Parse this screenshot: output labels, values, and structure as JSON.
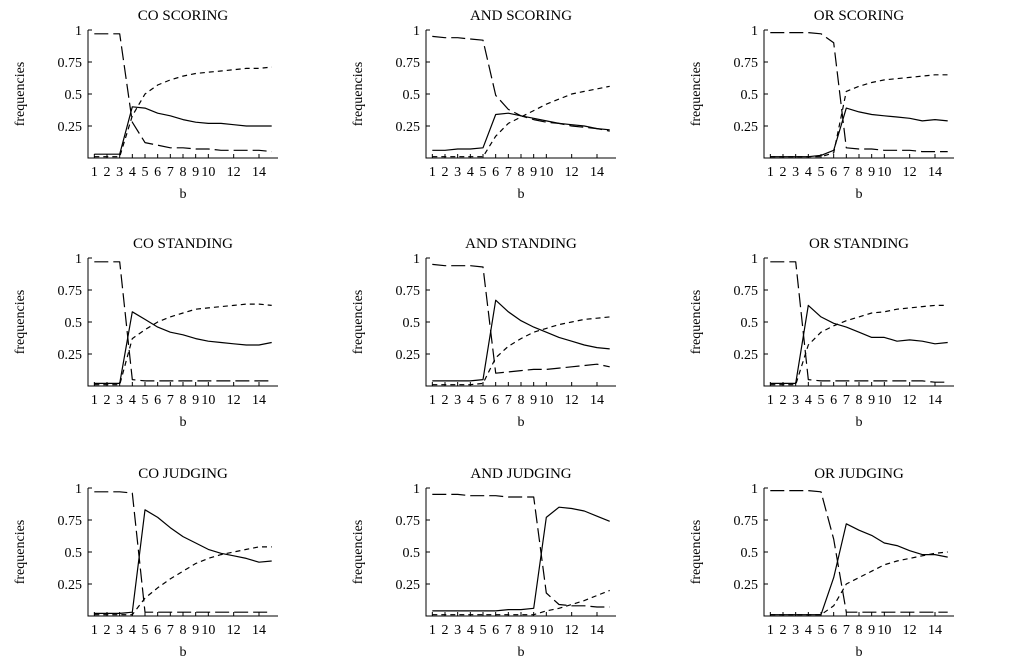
{
  "chart_data": [
    {
      "type": "line",
      "title": "CO SCORING",
      "xlabel": "b",
      "ylabel": "frequencies",
      "xlim": [
        0.5,
        15.5
      ],
      "ylim": [
        0,
        1
      ],
      "xticks": [
        1,
        2,
        3,
        4,
        5,
        6,
        7,
        8,
        9,
        10,
        12,
        14
      ],
      "xticklabels": [
        "1",
        "2",
        "3",
        "4",
        "5",
        "6",
        "7",
        "8",
        "9",
        "10",
        "12",
        "14"
      ],
      "yticks": [
        0.25,
        0.5,
        0.75,
        1
      ],
      "yticklabels": [
        "0.25",
        "0.5",
        "0.75",
        "1"
      ],
      "x": [
        1,
        2,
        3,
        4,
        5,
        6,
        7,
        8,
        9,
        10,
        11,
        12,
        13,
        14,
        15
      ],
      "series": [
        {
          "style": "solid",
          "values": [
            0.03,
            0.03,
            0.03,
            0.4,
            0.39,
            0.35,
            0.33,
            0.3,
            0.28,
            0.27,
            0.27,
            0.26,
            0.25,
            0.25,
            0.25
          ]
        },
        {
          "style": "long-dash",
          "values": [
            0.97,
            0.97,
            0.97,
            0.28,
            0.12,
            0.1,
            0.08,
            0.08,
            0.07,
            0.07,
            0.06,
            0.06,
            0.06,
            0.06,
            0.05
          ]
        },
        {
          "style": "short-dash",
          "values": [
            0.01,
            0.01,
            0.01,
            0.33,
            0.5,
            0.57,
            0.61,
            0.64,
            0.66,
            0.67,
            0.68,
            0.69,
            0.7,
            0.7,
            0.71
          ]
        }
      ]
    },
    {
      "type": "line",
      "title": "AND SCORING",
      "xlabel": "b",
      "ylabel": "frequencies",
      "xlim": [
        0.5,
        15.5
      ],
      "ylim": [
        0,
        1
      ],
      "xticks": [
        1,
        2,
        3,
        4,
        5,
        6,
        7,
        8,
        9,
        10,
        12,
        14
      ],
      "xticklabels": [
        "1",
        "2",
        "3",
        "4",
        "5",
        "6",
        "7",
        "8",
        "9",
        "10",
        "12",
        "14"
      ],
      "yticks": [
        0.25,
        0.5,
        0.75,
        1
      ],
      "yticklabels": [
        "0.25",
        "0.5",
        "0.75",
        "1"
      ],
      "x": [
        1,
        2,
        3,
        4,
        5,
        6,
        7,
        8,
        9,
        10,
        11,
        12,
        13,
        14,
        15
      ],
      "series": [
        {
          "style": "solid",
          "values": [
            0.06,
            0.06,
            0.07,
            0.07,
            0.08,
            0.34,
            0.35,
            0.33,
            0.31,
            0.29,
            0.27,
            0.26,
            0.25,
            0.23,
            0.22
          ]
        },
        {
          "style": "long-dash",
          "values": [
            0.95,
            0.94,
            0.94,
            0.93,
            0.92,
            0.49,
            0.38,
            0.33,
            0.3,
            0.28,
            0.27,
            0.25,
            0.24,
            0.23,
            0.21
          ]
        },
        {
          "style": "short-dash",
          "values": [
            0.01,
            0.01,
            0.01,
            0.01,
            0.01,
            0.17,
            0.27,
            0.32,
            0.37,
            0.42,
            0.46,
            0.5,
            0.52,
            0.54,
            0.56
          ]
        }
      ]
    },
    {
      "type": "line",
      "title": "OR SCORING",
      "xlabel": "b",
      "ylabel": "frequencies",
      "xlim": [
        0.5,
        15.5
      ],
      "ylim": [
        0,
        1
      ],
      "xticks": [
        1,
        2,
        3,
        4,
        5,
        6,
        7,
        8,
        9,
        10,
        12,
        14
      ],
      "xticklabels": [
        "1",
        "2",
        "3",
        "4",
        "5",
        "6",
        "7",
        "8",
        "9",
        "10",
        "12",
        "14"
      ],
      "yticks": [
        0.25,
        0.5,
        0.75,
        1
      ],
      "yticklabels": [
        "0.25",
        "0.5",
        "0.75",
        "1"
      ],
      "x": [
        1,
        2,
        3,
        4,
        5,
        6,
        7,
        8,
        9,
        10,
        11,
        12,
        13,
        14,
        15
      ],
      "series": [
        {
          "style": "solid",
          "values": [
            0.01,
            0.01,
            0.01,
            0.01,
            0.02,
            0.06,
            0.39,
            0.36,
            0.34,
            0.33,
            0.32,
            0.31,
            0.29,
            0.3,
            0.29
          ]
        },
        {
          "style": "long-dash",
          "values": [
            0.98,
            0.98,
            0.98,
            0.98,
            0.97,
            0.9,
            0.08,
            0.07,
            0.07,
            0.06,
            0.06,
            0.06,
            0.05,
            0.05,
            0.05
          ]
        },
        {
          "style": "short-dash",
          "values": [
            0.01,
            0.01,
            0.01,
            0.01,
            0.01,
            0.04,
            0.52,
            0.56,
            0.59,
            0.61,
            0.62,
            0.63,
            0.64,
            0.65,
            0.65
          ]
        }
      ]
    },
    {
      "type": "line",
      "title": "CO STANDING",
      "xlabel": "b",
      "ylabel": "frequencies",
      "xlim": [
        0.5,
        15.5
      ],
      "ylim": [
        0,
        1
      ],
      "xticks": [
        1,
        2,
        3,
        4,
        5,
        6,
        7,
        8,
        9,
        10,
        12,
        14
      ],
      "xticklabels": [
        "1",
        "2",
        "3",
        "4",
        "5",
        "6",
        "7",
        "8",
        "9",
        "10",
        "12",
        "14"
      ],
      "yticks": [
        0.25,
        0.5,
        0.75,
        1
      ],
      "yticklabels": [
        "0.25",
        "0.5",
        "0.75",
        "1"
      ],
      "x": [
        1,
        2,
        3,
        4,
        5,
        6,
        7,
        8,
        9,
        10,
        11,
        12,
        13,
        14,
        15
      ],
      "series": [
        {
          "style": "solid",
          "values": [
            0.02,
            0.02,
            0.02,
            0.58,
            0.52,
            0.46,
            0.42,
            0.4,
            0.37,
            0.35,
            0.34,
            0.33,
            0.32,
            0.32,
            0.34
          ]
        },
        {
          "style": "long-dash",
          "values": [
            0.97,
            0.97,
            0.97,
            0.05,
            0.04,
            0.04,
            0.04,
            0.04,
            0.04,
            0.04,
            0.04,
            0.04,
            0.04,
            0.04,
            0.04
          ]
        },
        {
          "style": "short-dash",
          "values": [
            0.01,
            0.01,
            0.01,
            0.37,
            0.44,
            0.5,
            0.54,
            0.57,
            0.6,
            0.61,
            0.62,
            0.63,
            0.64,
            0.64,
            0.63
          ]
        }
      ]
    },
    {
      "type": "line",
      "title": "AND STANDING",
      "xlabel": "b",
      "ylabel": "frequencies",
      "xlim": [
        0.5,
        15.5
      ],
      "ylim": [
        0,
        1
      ],
      "xticks": [
        1,
        2,
        3,
        4,
        5,
        6,
        7,
        8,
        9,
        10,
        12,
        14
      ],
      "xticklabels": [
        "1",
        "2",
        "3",
        "4",
        "5",
        "6",
        "7",
        "8",
        "9",
        "10",
        "12",
        "14"
      ],
      "yticks": [
        0.25,
        0.5,
        0.75,
        1
      ],
      "yticklabels": [
        "0.25",
        "0.5",
        "0.75",
        "1"
      ],
      "x": [
        1,
        2,
        3,
        4,
        5,
        6,
        7,
        8,
        9,
        10,
        11,
        12,
        13,
        14,
        15
      ],
      "series": [
        {
          "style": "solid",
          "values": [
            0.04,
            0.04,
            0.04,
            0.04,
            0.05,
            0.67,
            0.58,
            0.51,
            0.46,
            0.42,
            0.38,
            0.35,
            0.32,
            0.3,
            0.29
          ]
        },
        {
          "style": "long-dash",
          "values": [
            0.95,
            0.94,
            0.94,
            0.94,
            0.93,
            0.1,
            0.11,
            0.12,
            0.13,
            0.13,
            0.14,
            0.15,
            0.16,
            0.17,
            0.15
          ]
        },
        {
          "style": "short-dash",
          "values": [
            0.01,
            0.01,
            0.01,
            0.01,
            0.02,
            0.22,
            0.31,
            0.37,
            0.42,
            0.45,
            0.48,
            0.5,
            0.52,
            0.53,
            0.54
          ]
        }
      ]
    },
    {
      "type": "line",
      "title": "OR STANDING",
      "xlabel": "b",
      "ylabel": "frequencies",
      "xlim": [
        0.5,
        15.5
      ],
      "ylim": [
        0,
        1
      ],
      "xticks": [
        1,
        2,
        3,
        4,
        5,
        6,
        7,
        8,
        9,
        10,
        12,
        14
      ],
      "xticklabels": [
        "1",
        "2",
        "3",
        "4",
        "5",
        "6",
        "7",
        "8",
        "9",
        "10",
        "12",
        "14"
      ],
      "yticks": [
        0.25,
        0.5,
        0.75,
        1
      ],
      "yticklabels": [
        "0.25",
        "0.5",
        "0.75",
        "1"
      ],
      "x": [
        1,
        2,
        3,
        4,
        5,
        6,
        7,
        8,
        9,
        10,
        11,
        12,
        13,
        14,
        15
      ],
      "series": [
        {
          "style": "solid",
          "values": [
            0.02,
            0.02,
            0.02,
            0.63,
            0.54,
            0.49,
            0.46,
            0.42,
            0.38,
            0.38,
            0.35,
            0.36,
            0.35,
            0.33,
            0.34
          ]
        },
        {
          "style": "long-dash",
          "values": [
            0.97,
            0.97,
            0.97,
            0.05,
            0.04,
            0.04,
            0.04,
            0.04,
            0.04,
            0.04,
            0.04,
            0.04,
            0.04,
            0.03,
            0.03
          ]
        },
        {
          "style": "short-dash",
          "values": [
            0.01,
            0.01,
            0.01,
            0.32,
            0.42,
            0.47,
            0.51,
            0.54,
            0.57,
            0.58,
            0.6,
            0.61,
            0.62,
            0.63,
            0.63
          ]
        }
      ]
    },
    {
      "type": "line",
      "title": "CO JUDGING",
      "xlabel": "b",
      "ylabel": "frequencies",
      "xlim": [
        0.5,
        15.5
      ],
      "ylim": [
        0,
        1
      ],
      "xticks": [
        1,
        2,
        3,
        4,
        5,
        6,
        7,
        8,
        9,
        10,
        12,
        14
      ],
      "xticklabels": [
        "1",
        "2",
        "3",
        "4",
        "5",
        "6",
        "7",
        "8",
        "9",
        "10",
        "12",
        "14"
      ],
      "yticks": [
        0.25,
        0.5,
        0.75,
        1
      ],
      "yticklabels": [
        "0.25",
        "0.5",
        "0.75",
        "1"
      ],
      "x": [
        1,
        2,
        3,
        4,
        5,
        6,
        7,
        8,
        9,
        10,
        11,
        12,
        13,
        14,
        15
      ],
      "series": [
        {
          "style": "solid",
          "values": [
            0.02,
            0.02,
            0.02,
            0.03,
            0.83,
            0.77,
            0.69,
            0.62,
            0.57,
            0.52,
            0.49,
            0.47,
            0.45,
            0.42,
            0.43
          ]
        },
        {
          "style": "long-dash",
          "values": [
            0.97,
            0.97,
            0.97,
            0.96,
            0.03,
            0.03,
            0.03,
            0.03,
            0.03,
            0.03,
            0.03,
            0.03,
            0.03,
            0.03,
            0.03
          ]
        },
        {
          "style": "short-dash",
          "values": [
            0.01,
            0.01,
            0.01,
            0.01,
            0.14,
            0.22,
            0.29,
            0.35,
            0.41,
            0.45,
            0.48,
            0.5,
            0.52,
            0.54,
            0.54
          ]
        }
      ]
    },
    {
      "type": "line",
      "title": "AND JUDGING",
      "xlabel": "b",
      "ylabel": "frequencies",
      "xlim": [
        0.5,
        15.5
      ],
      "ylim": [
        0,
        1
      ],
      "xticks": [
        1,
        2,
        3,
        4,
        5,
        6,
        7,
        8,
        9,
        10,
        12,
        14
      ],
      "xticklabels": [
        "1",
        "2",
        "3",
        "4",
        "5",
        "6",
        "7",
        "8",
        "9",
        "10",
        "12",
        "14"
      ],
      "yticks": [
        0.25,
        0.5,
        0.75,
        1
      ],
      "yticklabels": [
        "0.25",
        "0.5",
        "0.75",
        "1"
      ],
      "x": [
        1,
        2,
        3,
        4,
        5,
        6,
        7,
        8,
        9,
        10,
        11,
        12,
        13,
        14,
        15
      ],
      "series": [
        {
          "style": "solid",
          "values": [
            0.04,
            0.04,
            0.04,
            0.04,
            0.04,
            0.04,
            0.05,
            0.05,
            0.06,
            0.77,
            0.85,
            0.84,
            0.82,
            0.78,
            0.74
          ]
        },
        {
          "style": "long-dash",
          "values": [
            0.95,
            0.95,
            0.95,
            0.94,
            0.94,
            0.94,
            0.93,
            0.93,
            0.93,
            0.18,
            0.09,
            0.08,
            0.08,
            0.07,
            0.07
          ]
        },
        {
          "style": "short-dash",
          "values": [
            0.01,
            0.01,
            0.01,
            0.01,
            0.01,
            0.01,
            0.01,
            0.01,
            0.01,
            0.04,
            0.06,
            0.09,
            0.12,
            0.16,
            0.2
          ]
        }
      ]
    },
    {
      "type": "line",
      "title": "OR JUDGING",
      "xlabel": "b",
      "ylabel": "frequencies",
      "xlim": [
        0.5,
        15.5
      ],
      "ylim": [
        0,
        1
      ],
      "xticks": [
        1,
        2,
        3,
        4,
        5,
        6,
        7,
        8,
        9,
        10,
        12,
        14
      ],
      "xticklabels": [
        "1",
        "2",
        "3",
        "4",
        "5",
        "6",
        "7",
        "8",
        "9",
        "10",
        "12",
        "14"
      ],
      "yticks": [
        0.25,
        0.5,
        0.75,
        1
      ],
      "yticklabels": [
        "0.25",
        "0.5",
        "0.75",
        "1"
      ],
      "x": [
        1,
        2,
        3,
        4,
        5,
        6,
        7,
        8,
        9,
        10,
        11,
        12,
        13,
        14,
        15
      ],
      "series": [
        {
          "style": "solid",
          "values": [
            0.01,
            0.01,
            0.01,
            0.01,
            0.01,
            0.3,
            0.72,
            0.67,
            0.63,
            0.57,
            0.55,
            0.51,
            0.48,
            0.48,
            0.46
          ]
        },
        {
          "style": "long-dash",
          "values": [
            0.98,
            0.98,
            0.98,
            0.98,
            0.97,
            0.6,
            0.03,
            0.03,
            0.03,
            0.03,
            0.03,
            0.03,
            0.03,
            0.03,
            0.03
          ]
        },
        {
          "style": "short-dash",
          "values": [
            0.01,
            0.01,
            0.01,
            0.01,
            0.01,
            0.08,
            0.25,
            0.3,
            0.35,
            0.4,
            0.43,
            0.45,
            0.47,
            0.49,
            0.5
          ]
        }
      ]
    }
  ]
}
